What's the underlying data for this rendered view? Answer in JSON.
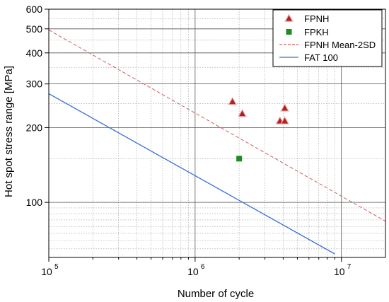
{
  "chart_data": {
    "type": "scatter",
    "xlabel": "Number of cycle",
    "ylabel": "Hot spot stress range [MPa]",
    "x_scale": "log",
    "y_scale": "log",
    "xlim": [
      100000,
      20000000
    ],
    "ylim": [
      60,
      600
    ],
    "x_ticks": [
      {
        "value": 100000,
        "base": "10",
        "exp": "5"
      },
      {
        "value": 1000000,
        "base": "10",
        "exp": "6"
      },
      {
        "value": 10000000,
        "base": "10",
        "exp": "7"
      }
    ],
    "y_ticks": [
      {
        "value": 100,
        "label": "100"
      },
      {
        "value": 200,
        "label": "200"
      },
      {
        "value": 300,
        "label": "300"
      },
      {
        "value": 400,
        "label": "400"
      },
      {
        "value": 500,
        "label": "500"
      },
      {
        "value": 600,
        "label": "600"
      }
    ],
    "grid": true,
    "legend_position": "top-right",
    "series": [
      {
        "name": "FPNH",
        "kind": "marker",
        "marker": "triangle",
        "color": "#b22222",
        "points": [
          [
            1800000,
            255
          ],
          [
            2100000,
            228
          ],
          [
            3800000,
            213
          ],
          [
            4100000,
            213
          ],
          [
            4100000,
            240
          ]
        ]
      },
      {
        "name": "FPKH",
        "kind": "marker",
        "marker": "square",
        "color": "#1e8c1e",
        "points": [
          [
            2000000,
            150
          ]
        ]
      },
      {
        "name": "FPNH Mean-2SD",
        "kind": "line",
        "dash": true,
        "color": "#cd5c5c",
        "points": [
          [
            100000,
            495
          ],
          [
            20000000,
            84
          ]
        ]
      },
      {
        "name": "FAT 100",
        "kind": "line",
        "dash": false,
        "color": "#3a6fd8",
        "points": [
          [
            100000,
            274
          ],
          [
            9000000,
            62
          ]
        ]
      }
    ]
  }
}
